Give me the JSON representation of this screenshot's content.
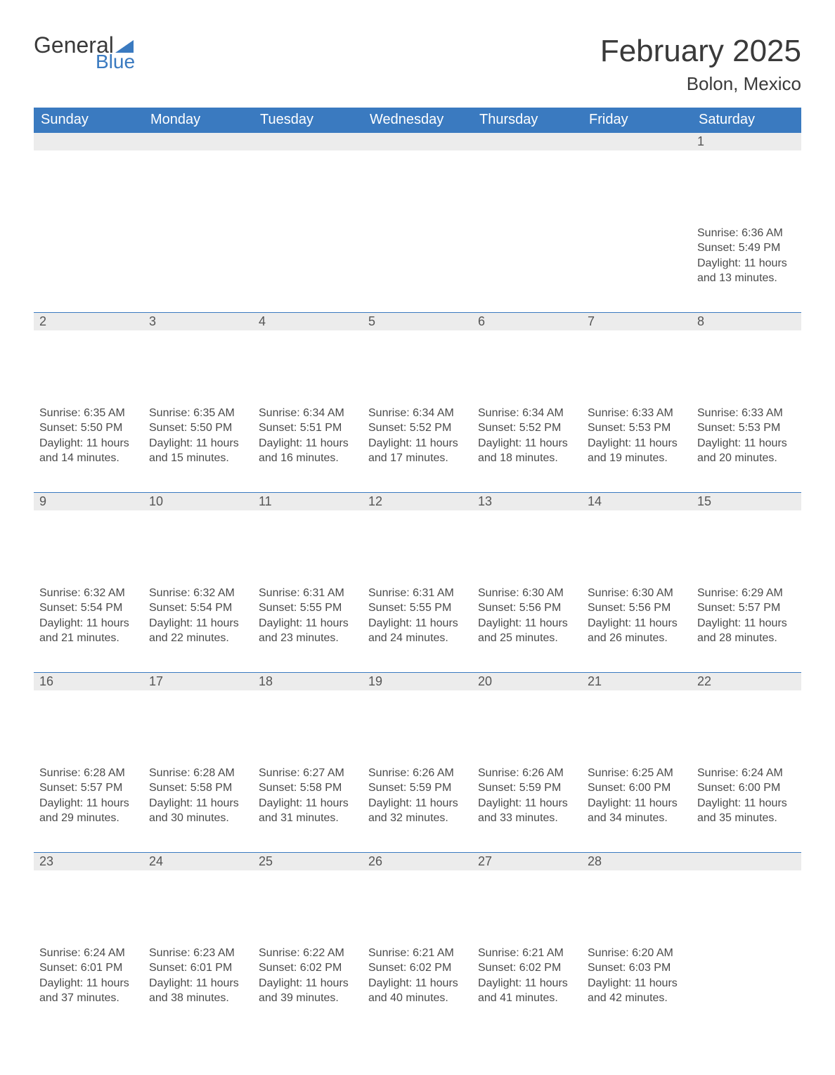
{
  "logo": {
    "line1": "General",
    "line2": "Blue"
  },
  "title": "February 2025",
  "subtitle": "Bolon, Mexico",
  "weekdays": [
    "Sunday",
    "Monday",
    "Tuesday",
    "Wednesday",
    "Thursday",
    "Friday",
    "Saturday"
  ],
  "colors": {
    "header_bg": "#3a7ac0",
    "stripe_bg": "#ececec",
    "accent_border": "#2b6bb0",
    "text_dark": "#2e2e2e",
    "text_mid": "#4a4a4a",
    "logo_blue": "#3a7ac0"
  },
  "weeks": [
    [
      null,
      null,
      null,
      null,
      null,
      null,
      {
        "n": 1,
        "sunrise": "6:36 AM",
        "sunset": "5:49 PM",
        "daylight": "11 hours and 13 minutes."
      }
    ],
    [
      {
        "n": 2,
        "sunrise": "6:35 AM",
        "sunset": "5:50 PM",
        "daylight": "11 hours and 14 minutes."
      },
      {
        "n": 3,
        "sunrise": "6:35 AM",
        "sunset": "5:50 PM",
        "daylight": "11 hours and 15 minutes."
      },
      {
        "n": 4,
        "sunrise": "6:34 AM",
        "sunset": "5:51 PM",
        "daylight": "11 hours and 16 minutes."
      },
      {
        "n": 5,
        "sunrise": "6:34 AM",
        "sunset": "5:52 PM",
        "daylight": "11 hours and 17 minutes."
      },
      {
        "n": 6,
        "sunrise": "6:34 AM",
        "sunset": "5:52 PM",
        "daylight": "11 hours and 18 minutes."
      },
      {
        "n": 7,
        "sunrise": "6:33 AM",
        "sunset": "5:53 PM",
        "daylight": "11 hours and 19 minutes."
      },
      {
        "n": 8,
        "sunrise": "6:33 AM",
        "sunset": "5:53 PM",
        "daylight": "11 hours and 20 minutes."
      }
    ],
    [
      {
        "n": 9,
        "sunrise": "6:32 AM",
        "sunset": "5:54 PM",
        "daylight": "11 hours and 21 minutes."
      },
      {
        "n": 10,
        "sunrise": "6:32 AM",
        "sunset": "5:54 PM",
        "daylight": "11 hours and 22 minutes."
      },
      {
        "n": 11,
        "sunrise": "6:31 AM",
        "sunset": "5:55 PM",
        "daylight": "11 hours and 23 minutes."
      },
      {
        "n": 12,
        "sunrise": "6:31 AM",
        "sunset": "5:55 PM",
        "daylight": "11 hours and 24 minutes."
      },
      {
        "n": 13,
        "sunrise": "6:30 AM",
        "sunset": "5:56 PM",
        "daylight": "11 hours and 25 minutes."
      },
      {
        "n": 14,
        "sunrise": "6:30 AM",
        "sunset": "5:56 PM",
        "daylight": "11 hours and 26 minutes."
      },
      {
        "n": 15,
        "sunrise": "6:29 AM",
        "sunset": "5:57 PM",
        "daylight": "11 hours and 28 minutes."
      }
    ],
    [
      {
        "n": 16,
        "sunrise": "6:28 AM",
        "sunset": "5:57 PM",
        "daylight": "11 hours and 29 minutes."
      },
      {
        "n": 17,
        "sunrise": "6:28 AM",
        "sunset": "5:58 PM",
        "daylight": "11 hours and 30 minutes."
      },
      {
        "n": 18,
        "sunrise": "6:27 AM",
        "sunset": "5:58 PM",
        "daylight": "11 hours and 31 minutes."
      },
      {
        "n": 19,
        "sunrise": "6:26 AM",
        "sunset": "5:59 PM",
        "daylight": "11 hours and 32 minutes."
      },
      {
        "n": 20,
        "sunrise": "6:26 AM",
        "sunset": "5:59 PM",
        "daylight": "11 hours and 33 minutes."
      },
      {
        "n": 21,
        "sunrise": "6:25 AM",
        "sunset": "6:00 PM",
        "daylight": "11 hours and 34 minutes."
      },
      {
        "n": 22,
        "sunrise": "6:24 AM",
        "sunset": "6:00 PM",
        "daylight": "11 hours and 35 minutes."
      }
    ],
    [
      {
        "n": 23,
        "sunrise": "6:24 AM",
        "sunset": "6:01 PM",
        "daylight": "11 hours and 37 minutes."
      },
      {
        "n": 24,
        "sunrise": "6:23 AM",
        "sunset": "6:01 PM",
        "daylight": "11 hours and 38 minutes."
      },
      {
        "n": 25,
        "sunrise": "6:22 AM",
        "sunset": "6:02 PM",
        "daylight": "11 hours and 39 minutes."
      },
      {
        "n": 26,
        "sunrise": "6:21 AM",
        "sunset": "6:02 PM",
        "daylight": "11 hours and 40 minutes."
      },
      {
        "n": 27,
        "sunrise": "6:21 AM",
        "sunset": "6:02 PM",
        "daylight": "11 hours and 41 minutes."
      },
      {
        "n": 28,
        "sunrise": "6:20 AM",
        "sunset": "6:03 PM",
        "daylight": "11 hours and 42 minutes."
      },
      null
    ]
  ],
  "labels": {
    "sunrise": "Sunrise:",
    "sunset": "Sunset:",
    "daylight": "Daylight:"
  }
}
